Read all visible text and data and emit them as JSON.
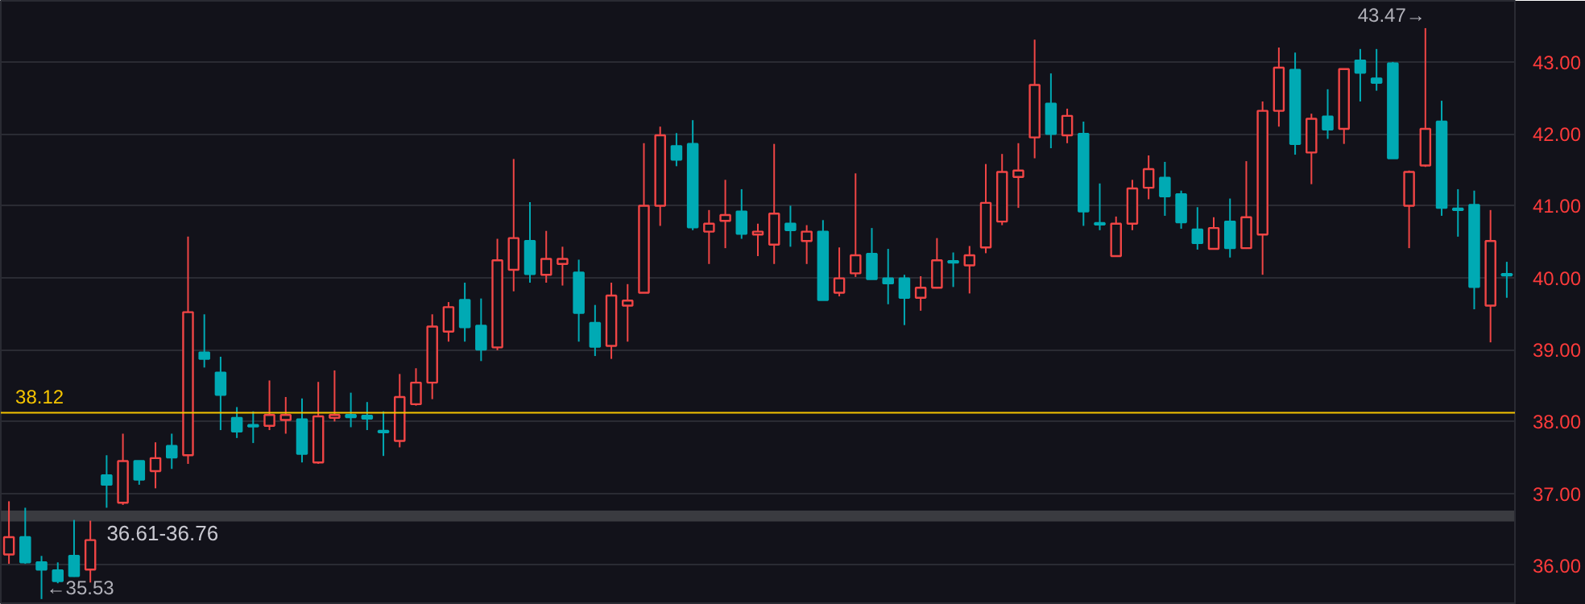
{
  "chart_data": {
    "type": "candlestick",
    "categories": [
      null,
      null,
      null,
      null,
      null,
      null,
      null,
      null,
      null,
      null,
      null,
      null,
      null,
      null,
      null,
      null,
      null,
      null,
      null,
      null,
      null,
      null,
      null,
      null,
      null,
      null,
      null,
      null,
      null,
      null,
      null,
      null,
      null,
      null,
      null,
      null,
      null,
      null,
      null,
      null,
      null,
      null,
      null,
      null,
      null,
      null,
      null,
      null,
      null,
      null,
      null,
      null,
      null,
      null,
      null,
      null,
      null,
      null,
      null,
      null,
      null,
      null,
      null,
      null,
      null,
      null,
      null,
      null,
      null,
      null,
      null,
      null,
      null,
      null,
      null,
      null,
      null,
      null,
      null,
      null,
      null,
      null,
      null,
      null,
      null,
      null,
      null,
      null,
      null,
      null,
      null,
      null,
      null
    ],
    "ohlc": [
      [
        36.15,
        36.89,
        36.02,
        36.39
      ],
      [
        36.39,
        36.8,
        36.02,
        36.04
      ],
      [
        36.04,
        36.13,
        35.53,
        35.94
      ],
      [
        35.93,
        36.04,
        35.75,
        35.78
      ],
      [
        36.13,
        36.63,
        35.84,
        35.85
      ],
      [
        35.94,
        36.62,
        35.76,
        36.35
      ],
      [
        37.25,
        37.53,
        36.8,
        37.12
      ],
      [
        36.87,
        37.83,
        36.84,
        37.45
      ],
      [
        37.45,
        37.45,
        37.12,
        37.19
      ],
      [
        37.31,
        37.71,
        37.07,
        37.49
      ],
      [
        37.66,
        37.83,
        37.34,
        37.5
      ],
      [
        37.53,
        40.57,
        37.41,
        39.52
      ],
      [
        38.96,
        39.49,
        38.75,
        38.87
      ],
      [
        38.68,
        38.9,
        37.88,
        38.37
      ],
      [
        38.05,
        38.2,
        37.77,
        37.86
      ],
      [
        37.95,
        38.14,
        37.7,
        37.94
      ],
      [
        37.94,
        38.57,
        37.88,
        38.09
      ],
      [
        38.02,
        38.34,
        37.83,
        38.09
      ],
      [
        38.03,
        38.32,
        37.43,
        37.55
      ],
      [
        37.43,
        38.55,
        37.41,
        38.07
      ],
      [
        38.05,
        38.71,
        38.0,
        38.09
      ],
      [
        38.09,
        38.4,
        37.92,
        38.06
      ],
      [
        38.08,
        38.27,
        37.88,
        38.04
      ],
      [
        37.87,
        38.14,
        37.52,
        37.86
      ],
      [
        37.73,
        38.66,
        37.64,
        38.34
      ],
      [
        38.24,
        38.74,
        38.22,
        38.54
      ],
      [
        38.54,
        39.49,
        38.31,
        39.32
      ],
      [
        39.25,
        39.66,
        39.11,
        39.59
      ],
      [
        39.69,
        39.93,
        39.11,
        39.31
      ],
      [
        39.33,
        39.71,
        38.84,
        39.0
      ],
      [
        39.03,
        40.54,
        38.99,
        40.24
      ],
      [
        40.11,
        41.65,
        39.81,
        40.55
      ],
      [
        40.51,
        41.05,
        39.93,
        40.05
      ],
      [
        40.04,
        40.65,
        39.93,
        40.26
      ],
      [
        40.19,
        40.43,
        39.89,
        40.26
      ],
      [
        40.07,
        40.25,
        39.11,
        39.51
      ],
      [
        39.37,
        39.62,
        38.91,
        39.04
      ],
      [
        39.05,
        39.93,
        38.87,
        39.75
      ],
      [
        39.61,
        39.91,
        39.11,
        39.68
      ],
      [
        39.79,
        41.87,
        39.79,
        41.0
      ],
      [
        41.0,
        42.1,
        40.72,
        41.98
      ],
      [
        41.83,
        42.01,
        41.55,
        41.64
      ],
      [
        41.86,
        42.19,
        40.66,
        40.7
      ],
      [
        40.64,
        40.94,
        40.19,
        40.75
      ],
      [
        40.79,
        41.36,
        40.41,
        40.87
      ],
      [
        40.92,
        41.23,
        40.54,
        40.61
      ],
      [
        40.6,
        40.75,
        40.3,
        40.64
      ],
      [
        40.46,
        41.86,
        40.19,
        40.89
      ],
      [
        40.75,
        41.0,
        40.43,
        40.66
      ],
      [
        40.51,
        40.73,
        40.19,
        40.64
      ],
      [
        40.64,
        40.8,
        39.69,
        39.69
      ],
      [
        39.79,
        40.42,
        39.74,
        39.99
      ],
      [
        40.06,
        41.45,
        40.01,
        40.31
      ],
      [
        40.33,
        40.69,
        39.98,
        39.98
      ],
      [
        39.99,
        40.4,
        39.63,
        39.92
      ],
      [
        39.99,
        40.04,
        39.34,
        39.72
      ],
      [
        39.72,
        40.02,
        39.54,
        39.86
      ],
      [
        39.86,
        40.55,
        39.85,
        40.24
      ],
      [
        40.23,
        40.35,
        39.87,
        40.22
      ],
      [
        40.17,
        40.44,
        39.78,
        40.31
      ],
      [
        40.42,
        41.58,
        40.34,
        41.04
      ],
      [
        40.78,
        41.72,
        40.73,
        41.47
      ],
      [
        41.4,
        41.87,
        40.97,
        41.49
      ],
      [
        41.95,
        43.31,
        41.66,
        42.68
      ],
      [
        42.42,
        42.84,
        41.8,
        42.0
      ],
      [
        41.98,
        42.35,
        41.87,
        42.25
      ],
      [
        42.0,
        42.17,
        40.72,
        40.92
      ],
      [
        40.76,
        41.31,
        40.66,
        40.75
      ],
      [
        40.3,
        40.85,
        40.3,
        40.75
      ],
      [
        40.75,
        41.36,
        40.66,
        41.24
      ],
      [
        41.25,
        41.7,
        41.09,
        41.51
      ],
      [
        41.39,
        41.61,
        40.86,
        41.13
      ],
      [
        41.16,
        41.21,
        40.68,
        40.77
      ],
      [
        40.67,
        40.98,
        40.39,
        40.48
      ],
      [
        40.4,
        40.84,
        40.39,
        40.69
      ],
      [
        40.78,
        41.1,
        40.28,
        40.41
      ],
      [
        40.41,
        41.62,
        40.4,
        40.84
      ],
      [
        40.6,
        42.45,
        40.04,
        42.32
      ],
      [
        42.32,
        43.2,
        42.1,
        42.92
      ],
      [
        42.89,
        43.13,
        41.71,
        41.86
      ],
      [
        41.74,
        42.28,
        41.3,
        42.21
      ],
      [
        42.24,
        42.62,
        41.93,
        42.06
      ],
      [
        42.07,
        42.9,
        41.86,
        42.9
      ],
      [
        43.02,
        43.18,
        42.45,
        42.85
      ],
      [
        42.77,
        43.18,
        42.6,
        42.71
      ],
      [
        42.98,
        43.0,
        41.66,
        41.66
      ],
      [
        41.0,
        41.49,
        40.41,
        41.47
      ],
      [
        41.56,
        43.47,
        41.54,
        42.07
      ],
      [
        42.17,
        42.46,
        40.86,
        40.97
      ],
      [
        40.96,
        41.23,
        40.57,
        40.95
      ],
      [
        41.01,
        41.21,
        39.56,
        39.87
      ],
      [
        39.61,
        40.94,
        39.1,
        40.51
      ],
      [
        40.05,
        40.22,
        39.72,
        40.04
      ]
    ],
    "colors": [
      "#f04545",
      "#00aab4",
      "#00aab4",
      "#00aab4",
      "#00aab4",
      "#f04545",
      "#00aab4",
      "#f04545",
      "#00aab4",
      "#f04545",
      "#00aab4",
      "#f04545",
      "#00aab4",
      "#00aab4",
      "#00aab4",
      "#00aab4",
      "#f04545",
      "#f04545",
      "#00aab4",
      "#f04545",
      "#f04545",
      "#00aab4",
      "#00aab4",
      "#00aab4",
      "#f04545",
      "#f04545",
      "#f04545",
      "#f04545",
      "#00aab4",
      "#00aab4",
      "#f04545",
      "#f04545",
      "#00aab4",
      "#f04545",
      "#f04545",
      "#00aab4",
      "#00aab4",
      "#f04545",
      "#f04545",
      "#f04545",
      "#f04545",
      "#00aab4",
      "#00aab4",
      "#f04545",
      "#f04545",
      "#00aab4",
      "#f04545",
      "#f04545",
      "#00aab4",
      "#f04545",
      "#00aab4",
      "#f04545",
      "#f04545",
      "#00aab4",
      "#00aab4",
      "#00aab4",
      "#f04545",
      "#f04545",
      "#00aab4",
      "#f04545",
      "#f04545",
      "#f04545",
      "#f04545",
      "#f04545",
      "#00aab4",
      "#f04545",
      "#00aab4",
      "#00aab4",
      "#f04545",
      "#f04545",
      "#f04545",
      "#00aab4",
      "#00aab4",
      "#00aab4",
      "#f04545",
      "#00aab4",
      "#f04545",
      "#f04545",
      "#f04545",
      "#00aab4",
      "#f04545",
      "#00aab4",
      "#f04545",
      "#00aab4",
      "#00aab4",
      "#00aab4",
      "#f04545",
      "#f04545",
      "#00aab4",
      "#00aab4",
      "#00aab4",
      "#f04545",
      "#00aab4"
    ],
    "ylim": [
      35.45,
      43.85
    ],
    "yticks": [
      {
        "value": 36,
        "label": "36.00"
      },
      {
        "value": 37,
        "label": "37.00"
      },
      {
        "value": 38,
        "label": "38.00"
      },
      {
        "value": 39,
        "label": "39.00"
      },
      {
        "value": 40,
        "label": "40.00"
      },
      {
        "value": 41,
        "label": "41.00"
      },
      {
        "value": 42,
        "label": "42.00"
      },
      {
        "value": 43,
        "label": "43.00"
      }
    ],
    "grid": "y",
    "ref_lines": [
      {
        "axis": "y",
        "value": 38.12,
        "label": "38.12",
        "color": "#f5c400"
      }
    ],
    "bands": [
      {
        "axis": "y",
        "from": 36.61,
        "to": 36.76,
        "label": "36.61-36.76",
        "color": "#3a3b40"
      }
    ],
    "annotations": [
      "43.47→",
      "←35.53"
    ]
  }
}
